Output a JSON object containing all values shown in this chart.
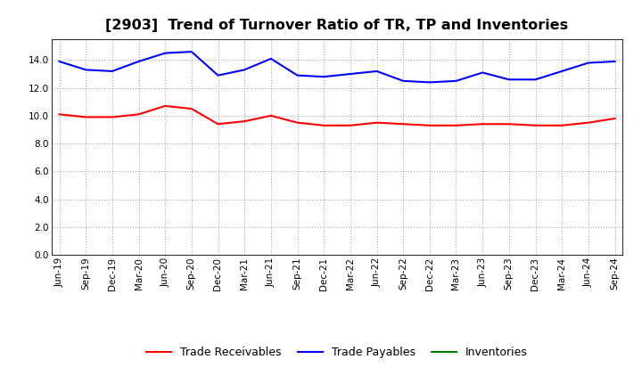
{
  "title": "[2903]  Trend of Turnover Ratio of TR, TP and Inventories",
  "x_labels": [
    "Jun-19",
    "Sep-19",
    "Dec-19",
    "Mar-20",
    "Jun-20",
    "Sep-20",
    "Dec-20",
    "Mar-21",
    "Jun-21",
    "Sep-21",
    "Dec-21",
    "Mar-22",
    "Jun-22",
    "Sep-22",
    "Dec-22",
    "Mar-23",
    "Jun-23",
    "Sep-23",
    "Dec-23",
    "Mar-24",
    "Jun-24",
    "Sep-24"
  ],
  "trade_receivables": [
    10.1,
    9.9,
    9.9,
    10.1,
    10.7,
    10.5,
    9.4,
    9.6,
    10.0,
    9.5,
    9.3,
    9.3,
    9.5,
    9.4,
    9.3,
    9.3,
    9.4,
    9.4,
    9.3,
    9.3,
    9.5,
    9.8
  ],
  "trade_payables": [
    13.9,
    13.3,
    13.2,
    13.9,
    14.5,
    14.6,
    12.9,
    13.3,
    14.1,
    12.9,
    12.8,
    13.0,
    13.2,
    12.5,
    12.4,
    12.5,
    13.1,
    12.6,
    12.6,
    13.2,
    13.8,
    13.9
  ],
  "inventories": [
    null,
    null,
    null,
    null,
    null,
    null,
    null,
    null,
    null,
    null,
    null,
    null,
    null,
    null,
    null,
    null,
    null,
    null,
    null,
    null,
    null,
    null
  ],
  "ylim": [
    0,
    15.5
  ],
  "yticks": [
    0.0,
    2.0,
    4.0,
    6.0,
    8.0,
    10.0,
    12.0,
    14.0
  ],
  "color_receivables": "#ff0000",
  "color_payables": "#0000ff",
  "color_inventories": "#008000",
  "background_color": "#ffffff",
  "grid_color": "#999999",
  "title_fontsize": 11.5,
  "legend_fontsize": 9,
  "tick_fontsize": 7.5
}
